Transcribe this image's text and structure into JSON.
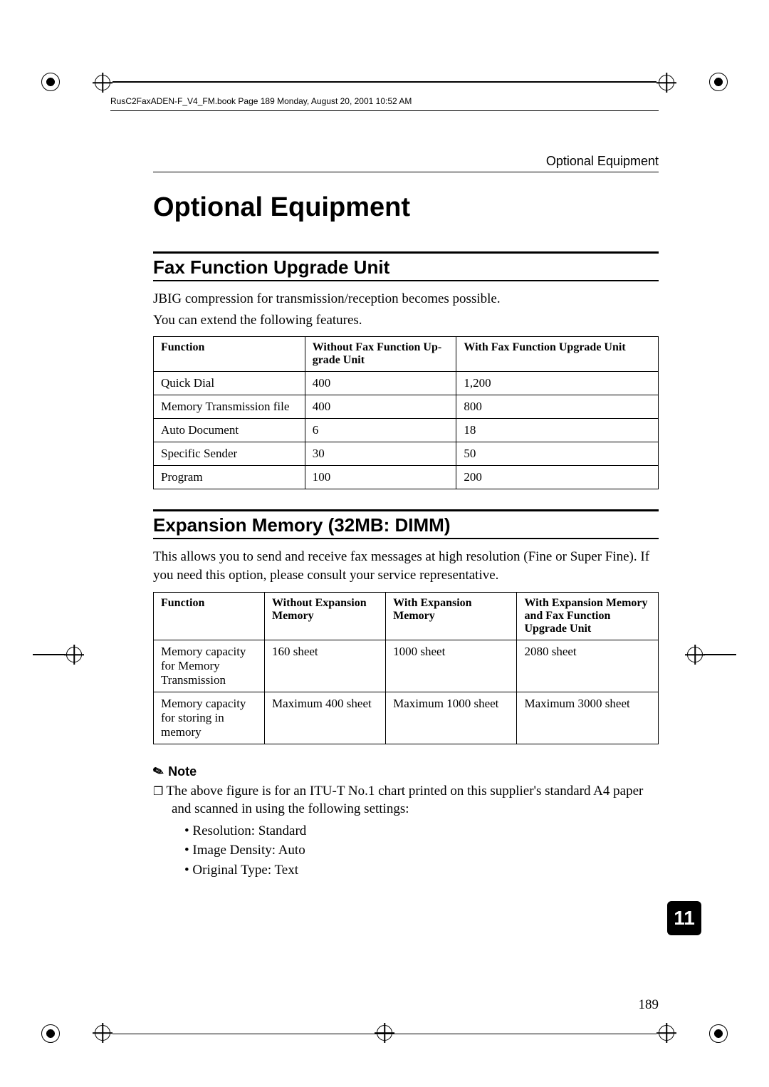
{
  "book_header": "RusC2FaxADEN-F_V4_FM.book  Page 189  Monday, August 20, 2001  10:52 AM",
  "running_head": "Optional Equipment",
  "title": "Optional Equipment",
  "chapter_number": "11",
  "page_number": "189",
  "section1": {
    "heading": "Fax Function Upgrade Unit",
    "p1": "JBIG compression for transmission/reception becomes possible.",
    "p2": "You can extend the following features.",
    "table": {
      "columns": [
        "Function",
        "Without Fax Function Up-\ngrade Unit",
        "With Fax Function Upgrade Unit"
      ],
      "col_widths": [
        "30%",
        "30%",
        "40%"
      ],
      "rows": [
        [
          "Quick Dial",
          "400",
          "1,200"
        ],
        [
          "Memory Transmission file",
          "400",
          "800"
        ],
        [
          "Auto Document",
          "6",
          "18"
        ],
        [
          "Specific Sender",
          "30",
          "50"
        ],
        [
          "Program",
          "100",
          "200"
        ]
      ]
    }
  },
  "section2": {
    "heading": "Expansion Memory (32MB: DIMM)",
    "p1": "This allows you to send and receive fax messages at high resolution (Fine or Super Fine). If you need this option, please consult your service representative.",
    "table": {
      "columns": [
        "Function",
        "Without Expansion Memory",
        "With Expansion Memory",
        "With Expansion Memory and Fax Function Upgrade Unit"
      ],
      "col_widths": [
        "22%",
        "24%",
        "26%",
        "28%"
      ],
      "rows": [
        [
          "Memory capacity for Memory Transmission",
          "160 sheet",
          "1000 sheet",
          "2080 sheet"
        ],
        [
          "Memory capacity for storing in memory",
          "Maximum 400 sheet",
          "Maximum 1000 sheet",
          "Maximum 3000 sheet"
        ]
      ]
    }
  },
  "note": {
    "label": "Note",
    "items": [
      "The above figure is for an ITU-T No.1 chart printed on this supplier's standard A4 paper and scanned in using the following settings:"
    ],
    "bullets": [
      "Resolution: Standard",
      "Image Density: Auto",
      "Original Type: Text"
    ]
  },
  "colors": {
    "text": "#000000",
    "background": "#ffffff",
    "tab_bg": "#000000",
    "tab_fg": "#ffffff"
  }
}
